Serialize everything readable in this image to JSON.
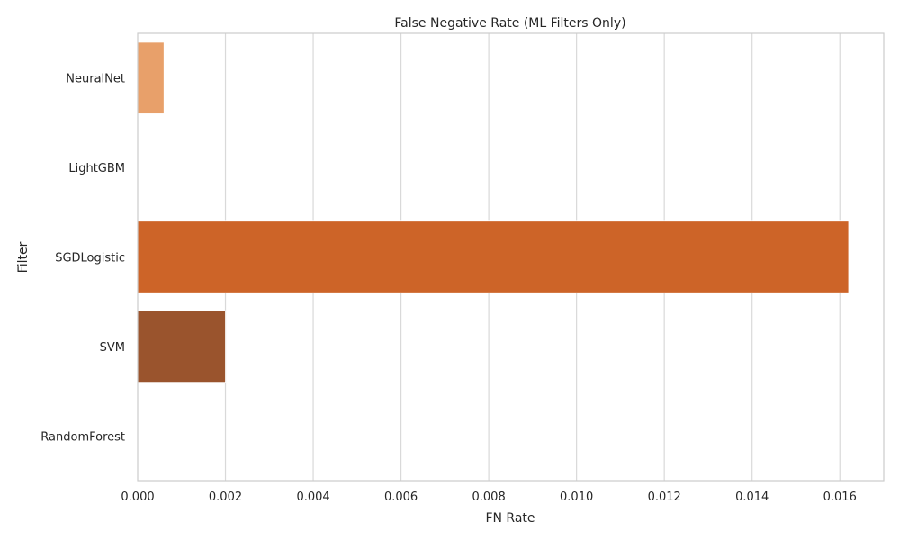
{
  "chart_data": {
    "type": "bar",
    "orientation": "horizontal",
    "title": "False Negative Rate (ML Filters Only)",
    "xlabel": "FN Rate",
    "ylabel": "Filter",
    "categories": [
      "NeuralNet",
      "LightGBM",
      "SGDLogistic",
      "SVM",
      "RandomForest"
    ],
    "values": [
      0.0006,
      0.0,
      0.0162,
      0.002,
      0.0
    ],
    "colors": [
      "#e8a06a",
      "#d86f32",
      "#cd6428",
      "#9a542d",
      "#6b3a1f"
    ],
    "xlim": [
      0,
      0.017
    ],
    "xticks": [
      "0.000",
      "0.002",
      "0.004",
      "0.006",
      "0.008",
      "0.010",
      "0.012",
      "0.014",
      "0.016"
    ],
    "grid": "vertical",
    "legend": "none"
  }
}
